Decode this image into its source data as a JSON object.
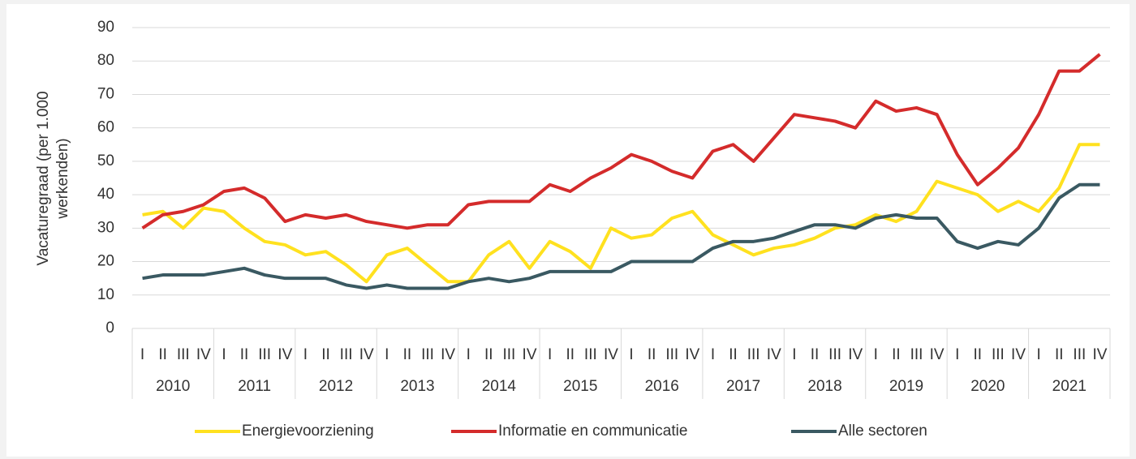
{
  "chart_data": {
    "type": "line",
    "ylabel": [
      "Vacaturegraad (per 1.000",
      "werkenden)"
    ],
    "categories": [
      "I",
      "II",
      "III",
      "IV",
      "I",
      "II",
      "III",
      "IV",
      "I",
      "II",
      "III",
      "IV",
      "I",
      "II",
      "III",
      "IV",
      "I",
      "II",
      "III",
      "IV",
      "I",
      "II",
      "III",
      "IV",
      "I",
      "II",
      "III",
      "IV",
      "I",
      "II",
      "III",
      "IV",
      "I",
      "II",
      "III",
      "IV",
      "I",
      "II",
      "III",
      "IV",
      "I",
      "II",
      "III",
      "IV",
      "I",
      "II",
      "III",
      "IV"
    ],
    "groups": [
      "2010",
      "2011",
      "2012",
      "2013",
      "2014",
      "2015",
      "2016",
      "2017",
      "2018",
      "2019",
      "2020",
      "2021"
    ],
    "series": [
      {
        "name": "Energievoorziening",
        "color": "#ffe11f",
        "values": [
          34,
          35,
          30,
          36,
          35,
          30,
          26,
          25,
          22,
          23,
          19,
          14,
          22,
          24,
          19,
          14,
          14,
          22,
          26,
          18,
          26,
          23,
          18,
          30,
          27,
          28,
          33,
          35,
          28,
          25,
          22,
          24,
          25,
          27,
          30,
          31,
          34,
          32,
          35,
          44,
          42,
          40,
          35,
          38,
          35,
          42,
          55,
          55
        ]
      },
      {
        "name": "Informatie en communicatie",
        "color": "#d42b2b",
        "values": [
          30,
          34,
          35,
          37,
          41,
          42,
          39,
          32,
          34,
          33,
          34,
          32,
          31,
          30,
          31,
          31,
          37,
          38,
          38,
          38,
          43,
          41,
          45,
          48,
          52,
          50,
          47,
          45,
          53,
          55,
          50,
          57,
          64,
          63,
          62,
          60,
          68,
          65,
          66,
          64,
          52,
          43,
          48,
          54,
          64,
          77,
          77,
          82
        ]
      },
      {
        "name": "Alle sectoren",
        "color": "#3a5962",
        "values": [
          15,
          16,
          16,
          16,
          17,
          18,
          16,
          15,
          15,
          15,
          13,
          12,
          13,
          12,
          12,
          12,
          14,
          15,
          14,
          15,
          17,
          17,
          17,
          17,
          20,
          20,
          20,
          20,
          24,
          26,
          26,
          27,
          29,
          31,
          31,
          30,
          33,
          34,
          33,
          33,
          26,
          24,
          26,
          25,
          30,
          39,
          43,
          43
        ]
      }
    ],
    "ylim": [
      0,
      90
    ],
    "yticks": [
      0,
      10,
      20,
      30,
      40,
      50,
      60,
      70,
      80,
      90
    ],
    "grid": true,
    "legend": "bottom"
  }
}
